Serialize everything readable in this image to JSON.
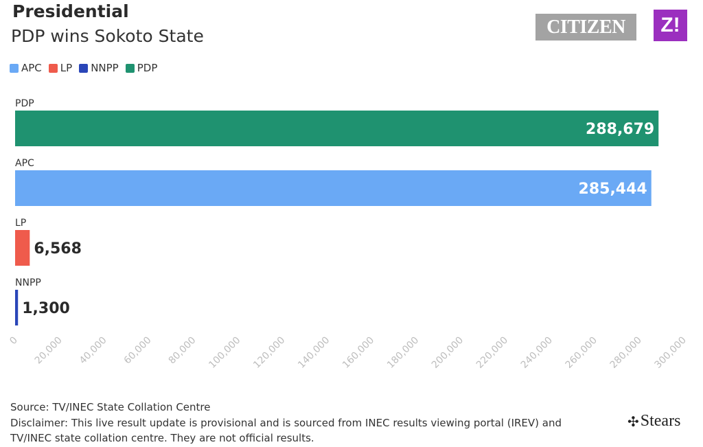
{
  "header": {
    "title": "Presidential",
    "subtitle": "PDP wins Sokoto State"
  },
  "logos": {
    "citizen": "CITIZEN",
    "z": "Z!",
    "stears": "Stears"
  },
  "legend": [
    {
      "label": "APC",
      "color": "#6aa9f5"
    },
    {
      "label": "LP",
      "color": "#ef5b4c"
    },
    {
      "label": "NNPP",
      "color": "#2a46b8"
    },
    {
      "label": "PDP",
      "color": "#1f9270"
    }
  ],
  "chart_data": {
    "type": "bar",
    "orientation": "horizontal",
    "categories": [
      "PDP",
      "APC",
      "LP",
      "NNPP"
    ],
    "values": [
      288679,
      285444,
      6568,
      1300
    ],
    "value_labels": [
      "288,679",
      "285,444",
      "6,568",
      "1,300"
    ],
    "colors": [
      "#1f9270",
      "#6aa9f5",
      "#ef5b4c",
      "#2a46b8"
    ],
    "xlim": [
      0,
      300000
    ],
    "xticks": [
      0,
      20000,
      40000,
      60000,
      80000,
      100000,
      120000,
      140000,
      160000,
      180000,
      200000,
      220000,
      240000,
      260000,
      280000,
      300000
    ],
    "xtick_labels": [
      "0",
      "20,000",
      "40,000",
      "60,000",
      "80,000",
      "100,000",
      "120,000",
      "140,000",
      "160,000",
      "180,000",
      "200,000",
      "220,000",
      "240,000",
      "260,000",
      "280,000",
      "300,000"
    ],
    "grid": false,
    "legend_position": "top-left"
  },
  "footer": {
    "source": "Source: TV/INEC State Collation Centre",
    "disclaimer_line1": "Disclaimer: This live result update is provisional and is sourced from INEC results viewing portal (IREV) and",
    "disclaimer_line2": "TV/INEC state collation centre. They are not official results."
  }
}
